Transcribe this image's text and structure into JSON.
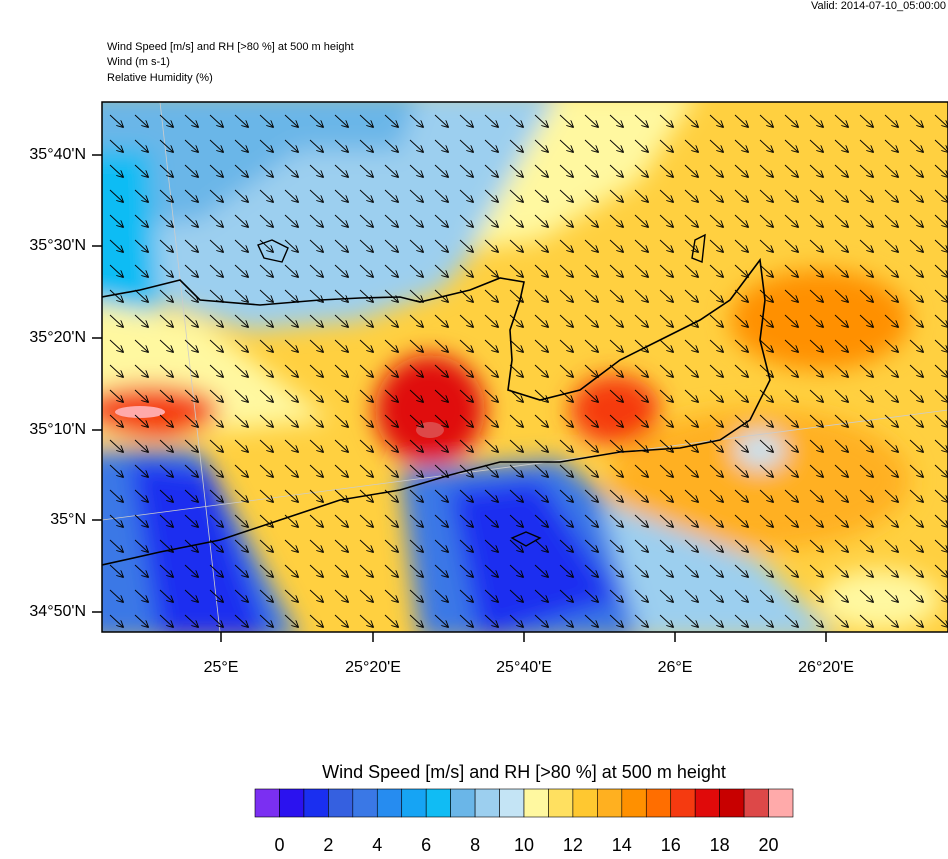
{
  "header": {
    "valid": "Valid: 2014-07-10_05:00:00",
    "titles": [
      "Wind Speed [m/s] and RH [>80 %] at 500 m height",
      "Wind   (m s-1)",
      "Relative Humidity   (%)"
    ]
  },
  "map": {
    "lat_labels": [
      "35°40'N",
      "35°30'N",
      "35°20'N",
      "35°10'N",
      "35°N",
      "34°50'N"
    ],
    "lon_labels": [
      "25°E",
      "25°20'E",
      "25°40'E",
      "26°E",
      "26°20'E"
    ]
  },
  "colorbar": {
    "title": "Wind Speed [m/s] and RH [>80 %] at 500 m height",
    "colors": [
      "#7b2ff2",
      "#2b12ef",
      "#1a2ff0",
      "#3560e0",
      "#3a78e6",
      "#268cf0",
      "#16a4f4",
      "#10bcf4",
      "#6ab6e8",
      "#9ccfef",
      "#c4e4f5",
      "#fff8a0",
      "#ffe060",
      "#ffc830",
      "#ffb020",
      "#ff9000",
      "#ff6e00",
      "#f53a10",
      "#e00a0a",
      "#c80000",
      "#dd4848",
      "#ffaaaa"
    ],
    "ticks": [
      0,
      2,
      4,
      6,
      8,
      10,
      12,
      14,
      16,
      18,
      20
    ]
  }
}
